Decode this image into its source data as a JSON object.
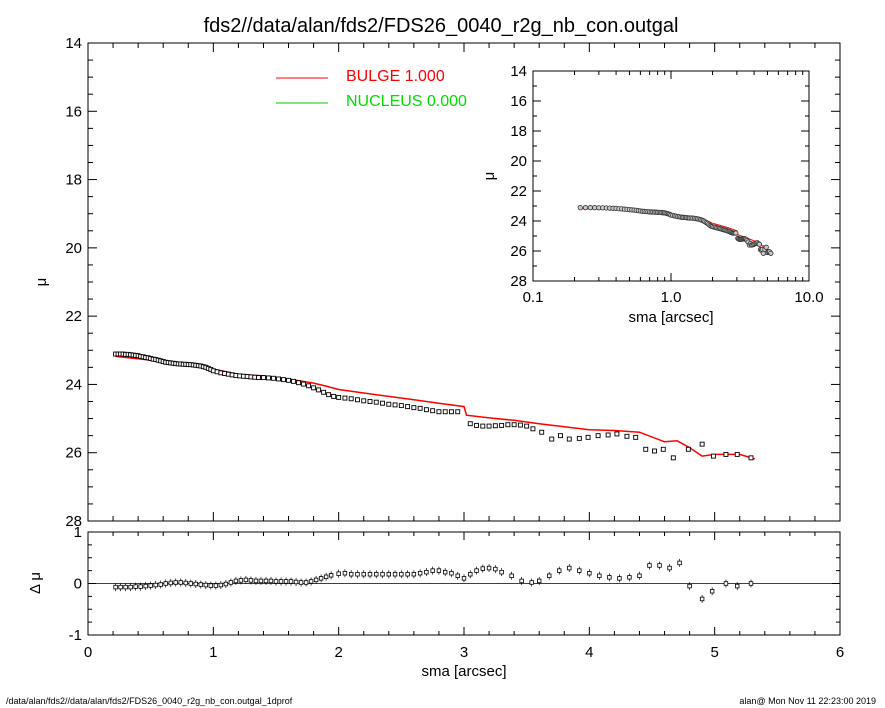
{
  "title": "fds2//data/alan/fds2/FDS26_0040_r2g_nb_con.outgal",
  "footer_left": "/data/alan/fds2//data/alan/fds2/FDS26_0040_r2g_nb_con.outgal_1dprof",
  "footer_right": "alan@  Mon Nov 11 22:23:00 2019",
  "colors": {
    "bulge": "#ff0000",
    "nucleus": "#00cc00",
    "data": "#000000",
    "axes": "#000000"
  },
  "legend": [
    {
      "label": "BULGE  1.000",
      "color": "#ff0000"
    },
    {
      "label": "NUCLEUS  0.000",
      "color": "#00dd00"
    }
  ],
  "chart_data": [
    {
      "type": "scatter",
      "panel": "main",
      "xlabel": "",
      "ylabel": "μ",
      "xlim": [
        0,
        6
      ],
      "ylim": [
        28,
        14
      ],
      "y_inverted": true,
      "yticks": [
        "14",
        "16",
        "18",
        "20",
        "22",
        "24",
        "26",
        "28"
      ],
      "grid": false,
      "legend_position": "top-left",
      "data_points": [
        [
          0.22,
          23.11
        ],
        [
          0.24,
          23.11
        ],
        [
          0.26,
          23.11
        ],
        [
          0.28,
          23.11
        ],
        [
          0.3,
          23.12
        ],
        [
          0.32,
          23.12
        ],
        [
          0.34,
          23.13
        ],
        [
          0.36,
          23.14
        ],
        [
          0.38,
          23.15
        ],
        [
          0.4,
          23.16
        ],
        [
          0.42,
          23.18
        ],
        [
          0.44,
          23.19
        ],
        [
          0.46,
          23.21
        ],
        [
          0.48,
          23.22
        ],
        [
          0.5,
          23.24
        ],
        [
          0.52,
          23.26
        ],
        [
          0.54,
          23.27
        ],
        [
          0.56,
          23.29
        ],
        [
          0.58,
          23.31
        ],
        [
          0.6,
          23.33
        ],
        [
          0.62,
          23.35
        ],
        [
          0.64,
          23.36
        ],
        [
          0.66,
          23.37
        ],
        [
          0.68,
          23.38
        ],
        [
          0.7,
          23.39
        ],
        [
          0.72,
          23.4
        ],
        [
          0.74,
          23.4
        ],
        [
          0.76,
          23.41
        ],
        [
          0.78,
          23.41
        ],
        [
          0.8,
          23.42
        ],
        [
          0.82,
          23.42
        ],
        [
          0.84,
          23.43
        ],
        [
          0.86,
          23.44
        ],
        [
          0.88,
          23.45
        ],
        [
          0.9,
          23.46
        ],
        [
          0.92,
          23.48
        ],
        [
          0.94,
          23.5
        ],
        [
          0.96,
          23.53
        ],
        [
          0.98,
          23.56
        ],
        [
          1.0,
          23.6
        ],
        [
          1.03,
          23.63
        ],
        [
          1.06,
          23.66
        ],
        [
          1.09,
          23.68
        ],
        [
          1.12,
          23.7
        ],
        [
          1.15,
          23.72
        ],
        [
          1.18,
          23.74
        ],
        [
          1.21,
          23.75
        ],
        [
          1.24,
          23.76
        ],
        [
          1.27,
          23.77
        ],
        [
          1.3,
          23.78
        ],
        [
          1.33,
          23.79
        ],
        [
          1.36,
          23.8
        ],
        [
          1.4,
          23.8
        ],
        [
          1.44,
          23.81
        ],
        [
          1.48,
          23.82
        ],
        [
          1.52,
          23.84
        ],
        [
          1.56,
          23.86
        ],
        [
          1.6,
          23.88
        ],
        [
          1.64,
          23.91
        ],
        [
          1.68,
          23.95
        ],
        [
          1.72,
          23.99
        ],
        [
          1.76,
          24.04
        ],
        [
          1.8,
          24.1
        ],
        [
          1.84,
          24.16
        ],
        [
          1.88,
          24.23
        ],
        [
          1.92,
          24.3
        ],
        [
          1.96,
          24.35
        ],
        [
          2.0,
          24.38
        ],
        [
          2.05,
          24.4
        ],
        [
          2.1,
          24.42
        ],
        [
          2.15,
          24.45
        ],
        [
          2.2,
          24.48
        ],
        [
          2.25,
          24.5
        ],
        [
          2.3,
          24.52
        ],
        [
          2.35,
          24.55
        ],
        [
          2.4,
          24.58
        ],
        [
          2.45,
          24.6
        ],
        [
          2.5,
          24.62
        ],
        [
          2.55,
          24.65
        ],
        [
          2.6,
          24.68
        ],
        [
          2.65,
          24.7
        ],
        [
          2.7,
          24.74
        ],
        [
          2.75,
          24.77
        ],
        [
          2.8,
          24.8
        ],
        [
          2.85,
          24.8
        ],
        [
          2.9,
          24.8
        ],
        [
          2.95,
          24.8
        ],
        [
          3.05,
          25.15
        ],
        [
          3.1,
          25.2
        ],
        [
          3.15,
          25.22
        ],
        [
          3.2,
          25.22
        ],
        [
          3.25,
          25.21
        ],
        [
          3.3,
          25.2
        ],
        [
          3.35,
          25.18
        ],
        [
          3.4,
          25.18
        ],
        [
          3.45,
          25.19
        ],
        [
          3.5,
          25.22
        ],
        [
          3.55,
          25.3
        ],
        [
          3.62,
          25.4
        ],
        [
          3.7,
          25.6
        ],
        [
          3.77,
          25.5
        ],
        [
          3.84,
          25.6
        ],
        [
          3.92,
          25.58
        ],
        [
          3.99,
          25.55
        ],
        [
          4.07,
          25.5
        ],
        [
          4.15,
          25.48
        ],
        [
          4.22,
          25.45
        ],
        [
          4.3,
          25.52
        ],
        [
          4.37,
          25.55
        ],
        [
          4.45,
          25.9
        ],
        [
          4.52,
          25.95
        ],
        [
          4.59,
          25.9
        ],
        [
          4.67,
          26.15
        ],
        [
          4.79,
          25.9
        ],
        [
          4.9,
          25.75
        ],
        [
          4.99,
          26.1
        ],
        [
          5.09,
          26.05
        ],
        [
          5.18,
          26.05
        ],
        [
          5.29,
          26.15
        ]
      ],
      "bulge_model": [
        [
          0.22,
          23.18
        ],
        [
          0.4,
          23.25
        ],
        [
          0.6,
          23.33
        ],
        [
          0.8,
          23.4
        ],
        [
          0.95,
          23.45
        ],
        [
          1.0,
          23.55
        ],
        [
          1.2,
          23.7
        ],
        [
          1.4,
          23.75
        ],
        [
          1.6,
          23.84
        ],
        [
          1.8,
          23.96
        ],
        [
          1.9,
          24.05
        ],
        [
          2.0,
          24.15
        ],
        [
          2.2,
          24.25
        ],
        [
          2.4,
          24.35
        ],
        [
          2.6,
          24.45
        ],
        [
          2.8,
          24.55
        ],
        [
          3.0,
          24.65
        ],
        [
          3.02,
          24.9
        ],
        [
          3.2,
          24.98
        ],
        [
          3.4,
          25.05
        ],
        [
          3.6,
          25.15
        ],
        [
          3.8,
          25.24
        ],
        [
          4.0,
          25.33
        ],
        [
          4.2,
          25.35
        ],
        [
          4.4,
          25.4
        ],
        [
          4.6,
          25.68
        ],
        [
          4.7,
          25.65
        ],
        [
          4.8,
          25.85
        ],
        [
          4.9,
          26.1
        ],
        [
          5.0,
          26.05
        ],
        [
          5.2,
          26.05
        ],
        [
          5.32,
          26.18
        ]
      ]
    },
    {
      "type": "scatter",
      "panel": "inset",
      "xlabel": "sma [arcsec]",
      "ylabel": "μ",
      "xscale": "log",
      "xlim": [
        0.1,
        10.0
      ],
      "xticks": [
        "0.1",
        "1.0",
        "10.0"
      ],
      "ylim": [
        28,
        14
      ],
      "yticks": [
        "14",
        "16",
        "18",
        "20",
        "22",
        "24",
        "26",
        "28"
      ],
      "y_inverted": true
    },
    {
      "type": "scatter",
      "panel": "residual",
      "xlabel": "sma [arcsec]",
      "ylabel": "Δ μ",
      "xlim": [
        0,
        6
      ],
      "xticks": [
        "0",
        "1",
        "2",
        "3",
        "4",
        "5",
        "6"
      ],
      "ylim": [
        -1,
        1
      ],
      "yticks": [
        "1",
        "0",
        "-1"
      ],
      "residuals": [
        [
          0.22,
          -0.07
        ],
        [
          0.26,
          -0.07
        ],
        [
          0.3,
          -0.07
        ],
        [
          0.34,
          -0.07
        ],
        [
          0.38,
          -0.06
        ],
        [
          0.42,
          -0.06
        ],
        [
          0.46,
          -0.05
        ],
        [
          0.5,
          -0.04
        ],
        [
          0.54,
          -0.03
        ],
        [
          0.58,
          -0.02
        ],
        [
          0.62,
          0.0
        ],
        [
          0.66,
          0.01
        ],
        [
          0.7,
          0.02
        ],
        [
          0.74,
          0.02
        ],
        [
          0.78,
          0.01
        ],
        [
          0.82,
          0.0
        ],
        [
          0.86,
          -0.01
        ],
        [
          0.9,
          -0.02
        ],
        [
          0.94,
          -0.03
        ],
        [
          0.98,
          -0.04
        ],
        [
          1.02,
          -0.04
        ],
        [
          1.06,
          -0.03
        ],
        [
          1.1,
          -0.01
        ],
        [
          1.14,
          0.02
        ],
        [
          1.18,
          0.05
        ],
        [
          1.22,
          0.06
        ],
        [
          1.26,
          0.07
        ],
        [
          1.3,
          0.06
        ],
        [
          1.34,
          0.05
        ],
        [
          1.38,
          0.05
        ],
        [
          1.42,
          0.05
        ],
        [
          1.46,
          0.05
        ],
        [
          1.5,
          0.04
        ],
        [
          1.54,
          0.04
        ],
        [
          1.58,
          0.04
        ],
        [
          1.62,
          0.04
        ],
        [
          1.66,
          0.03
        ],
        [
          1.7,
          0.02
        ],
        [
          1.74,
          0.02
        ],
        [
          1.78,
          0.04
        ],
        [
          1.82,
          0.07
        ],
        [
          1.86,
          0.1
        ],
        [
          1.9,
          0.13
        ],
        [
          1.94,
          0.16
        ],
        [
          2.0,
          0.19
        ],
        [
          2.05,
          0.2
        ],
        [
          2.1,
          0.18
        ],
        [
          2.15,
          0.18
        ],
        [
          2.2,
          0.18
        ],
        [
          2.25,
          0.18
        ],
        [
          2.3,
          0.18
        ],
        [
          2.35,
          0.18
        ],
        [
          2.4,
          0.18
        ],
        [
          2.45,
          0.18
        ],
        [
          2.5,
          0.18
        ],
        [
          2.55,
          0.18
        ],
        [
          2.6,
          0.18
        ],
        [
          2.65,
          0.2
        ],
        [
          2.7,
          0.22
        ],
        [
          2.75,
          0.25
        ],
        [
          2.8,
          0.25
        ],
        [
          2.85,
          0.22
        ],
        [
          2.9,
          0.2
        ],
        [
          2.95,
          0.15
        ],
        [
          3.0,
          0.1
        ],
        [
          3.05,
          0.18
        ],
        [
          3.1,
          0.25
        ],
        [
          3.15,
          0.29
        ],
        [
          3.2,
          0.3
        ],
        [
          3.25,
          0.28
        ],
        [
          3.3,
          0.22
        ],
        [
          3.38,
          0.15
        ],
        [
          3.46,
          0.05
        ],
        [
          3.54,
          0.02
        ],
        [
          3.6,
          0.05
        ],
        [
          3.68,
          0.15
        ],
        [
          3.76,
          0.25
        ],
        [
          3.84,
          0.3
        ],
        [
          3.92,
          0.25
        ],
        [
          4.0,
          0.2
        ],
        [
          4.08,
          0.15
        ],
        [
          4.16,
          0.12
        ],
        [
          4.24,
          0.1
        ],
        [
          4.32,
          0.12
        ],
        [
          4.4,
          0.15
        ],
        [
          4.48,
          0.35
        ],
        [
          4.56,
          0.35
        ],
        [
          4.64,
          0.3
        ],
        [
          4.72,
          0.4
        ],
        [
          4.8,
          -0.05
        ],
        [
          4.9,
          -0.3
        ],
        [
          4.98,
          -0.15
        ],
        [
          5.09,
          0.0
        ],
        [
          5.18,
          -0.05
        ],
        [
          5.29,
          0.0
        ]
      ],
      "reference_line": 0
    }
  ]
}
